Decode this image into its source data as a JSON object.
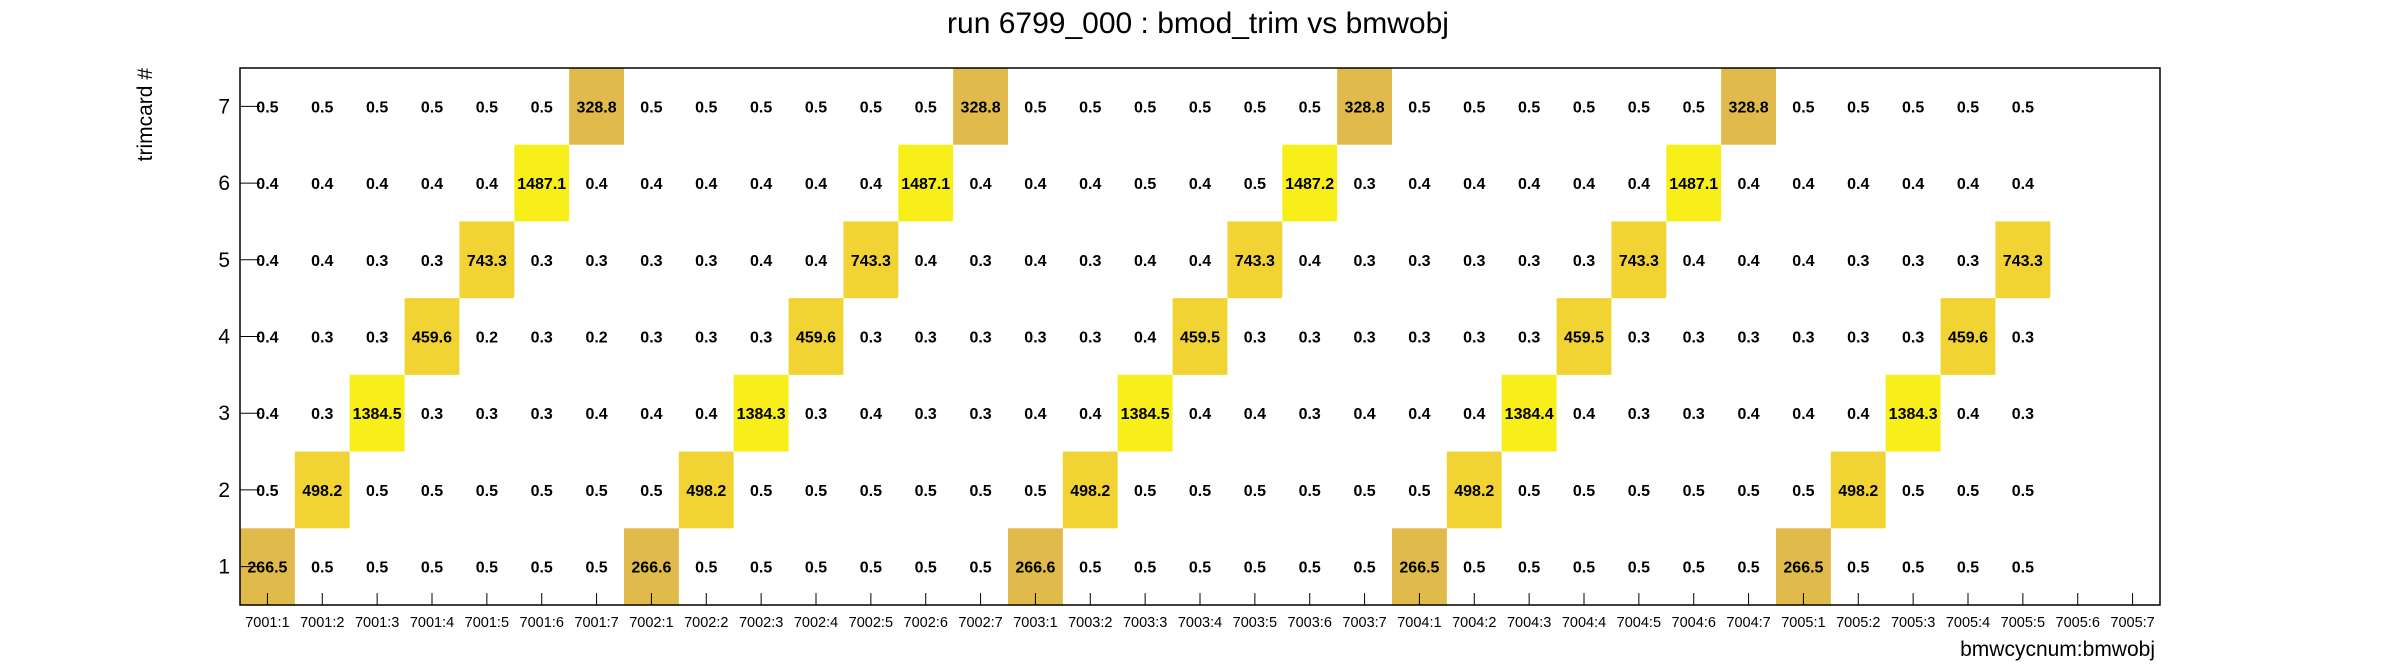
{
  "chart_data": {
    "type": "heatmap",
    "title": "run 6799_000 : bmod_trim vs bmwobj",
    "xlabel": "bmwcycnum:bmwobj",
    "ylabel": "trimcard #",
    "x_categories": [
      "7001:1",
      "7001:2",
      "7001:3",
      "7001:4",
      "7001:5",
      "7001:6",
      "7001:7",
      "7002:1",
      "7002:2",
      "7002:3",
      "7002:4",
      "7002:5",
      "7002:6",
      "7002:7",
      "7003:1",
      "7003:2",
      "7003:3",
      "7003:4",
      "7003:5",
      "7003:6",
      "7003:7",
      "7004:1",
      "7004:2",
      "7004:3",
      "7004:4",
      "7004:5",
      "7004:6",
      "7004:7",
      "7005:1",
      "7005:2",
      "7005:3",
      "7005:4",
      "7005:5",
      "7005:6",
      "7005:7"
    ],
    "y_categories": [
      "1",
      "2",
      "3",
      "4",
      "5",
      "6",
      "7"
    ],
    "values": [
      [
        "266.5",
        "0.5",
        "0.5",
        "0.5",
        "0.5",
        "0.5",
        "0.5",
        "266.6",
        "0.5",
        "0.5",
        "0.5",
        "0.5",
        "0.5",
        "0.5",
        "266.6",
        "0.5",
        "0.5",
        "0.5",
        "0.5",
        "0.5",
        "0.5",
        "266.5",
        "0.5",
        "0.5",
        "0.5",
        "0.5",
        "0.5",
        "0.5",
        "266.5",
        "0.5",
        "0.5",
        "0.5",
        "0.5",
        null,
        null
      ],
      [
        "0.5",
        "498.2",
        "0.5",
        "0.5",
        "0.5",
        "0.5",
        "0.5",
        "0.5",
        "498.2",
        "0.5",
        "0.5",
        "0.5",
        "0.5",
        "0.5",
        "0.5",
        "498.2",
        "0.5",
        "0.5",
        "0.5",
        "0.5",
        "0.5",
        "0.5",
        "498.2",
        "0.5",
        "0.5",
        "0.5",
        "0.5",
        "0.5",
        "0.5",
        "498.2",
        "0.5",
        "0.5",
        "0.5",
        null,
        null
      ],
      [
        "0.4",
        "0.3",
        "1384.5",
        "0.3",
        "0.3",
        "0.3",
        "0.4",
        "0.4",
        "0.4",
        "1384.3",
        "0.3",
        "0.4",
        "0.3",
        "0.3",
        "0.4",
        "0.4",
        "1384.5",
        "0.4",
        "0.4",
        "0.3",
        "0.4",
        "0.4",
        "0.4",
        "1384.4",
        "0.4",
        "0.3",
        "0.3",
        "0.4",
        "0.4",
        "0.4",
        "1384.3",
        "0.4",
        "0.3",
        null,
        null
      ],
      [
        "0.4",
        "0.3",
        "0.3",
        "459.6",
        "0.2",
        "0.3",
        "0.2",
        "0.3",
        "0.3",
        "0.3",
        "459.6",
        "0.3",
        "0.3",
        "0.3",
        "0.3",
        "0.3",
        "0.4",
        "459.5",
        "0.3",
        "0.3",
        "0.3",
        "0.3",
        "0.3",
        "0.3",
        "459.5",
        "0.3",
        "0.3",
        "0.3",
        "0.3",
        "0.3",
        "0.3",
        "459.6",
        "0.3",
        null,
        null
      ],
      [
        "0.4",
        "0.4",
        "0.3",
        "0.3",
        "743.3",
        "0.3",
        "0.3",
        "0.3",
        "0.3",
        "0.4",
        "0.4",
        "743.3",
        "0.4",
        "0.3",
        "0.4",
        "0.3",
        "0.4",
        "0.4",
        "743.3",
        "0.4",
        "0.3",
        "0.3",
        "0.3",
        "0.3",
        "0.3",
        "743.3",
        "0.4",
        "0.4",
        "0.4",
        "0.3",
        "0.3",
        "0.3",
        "743.3",
        null,
        null
      ],
      [
        "0.4",
        "0.4",
        "0.4",
        "0.4",
        "0.4",
        "1487.1",
        "0.4",
        "0.4",
        "0.4",
        "0.4",
        "0.4",
        "0.4",
        "1487.1",
        "0.4",
        "0.4",
        "0.4",
        "0.5",
        "0.4",
        "0.5",
        "1487.2",
        "0.3",
        "0.4",
        "0.4",
        "0.4",
        "0.4",
        "0.4",
        "1487.1",
        "0.4",
        "0.4",
        "0.4",
        "0.4",
        "0.4",
        "0.4",
        null,
        null
      ],
      [
        "0.5",
        "0.5",
        "0.5",
        "0.5",
        "0.5",
        "0.5",
        "328.8",
        "0.5",
        "0.5",
        "0.5",
        "0.5",
        "0.5",
        "0.5",
        "328.8",
        "0.5",
        "0.5",
        "0.5",
        "0.5",
        "0.5",
        "0.5",
        "328.8",
        "0.5",
        "0.5",
        "0.5",
        "0.5",
        "0.5",
        "0.5",
        "328.8",
        "0.5",
        "0.5",
        "0.5",
        "0.5",
        "0.5",
        null,
        null
      ]
    ],
    "grid": false,
    "legend": "none",
    "colors": {
      "high": "#f7ee1a",
      "mid": "#f2d334",
      "low": "#e0bb4c",
      "frame": "#000000"
    }
  }
}
